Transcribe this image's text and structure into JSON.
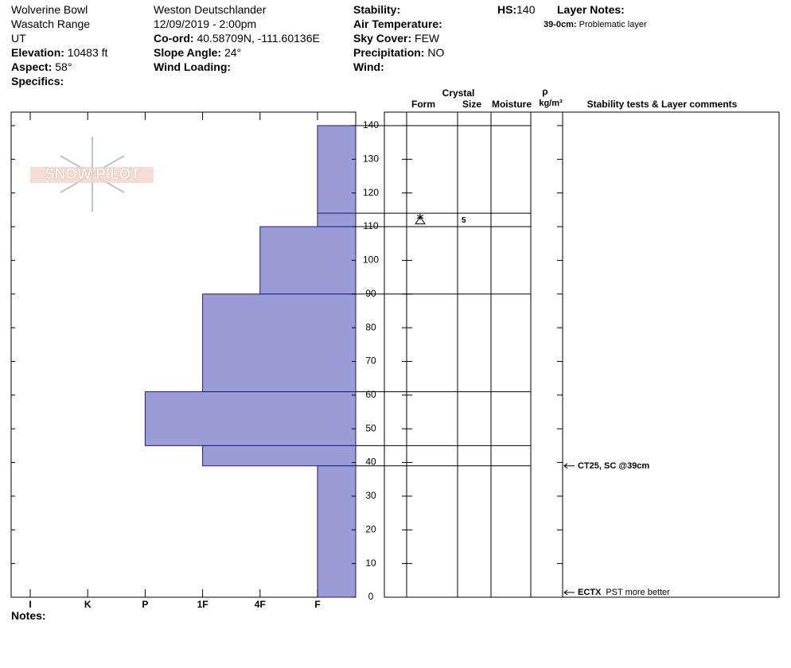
{
  "header": {
    "location": "Wolverine Bowl",
    "range": "Wasatch Range",
    "state": "UT",
    "elevation_label": "Elevation:",
    "elevation": "10483 ft",
    "aspect_label": "Aspect:",
    "aspect": "58°",
    "specifics_label": "Specifics:",
    "observer": "Weston Deutschlander",
    "datetime": "12/09/2019 - 2:00pm",
    "coord_label": "Co-ord:",
    "coord": "40.58709N, -111.60136E",
    "slope_label": "Slope Angle:",
    "slope": "24°",
    "wind_loading_label": "Wind Loading:",
    "stability_label": "Stability:",
    "air_temp_label": "Air Temperature:",
    "sky_label": "Sky Cover:",
    "sky": "FEW",
    "precip_label": "Precipitation:",
    "precip": "NO",
    "wind_label": "Wind:",
    "hs_label": "HS:",
    "hs": 140,
    "layer_notes_label": "Layer Notes:",
    "layer_note_range": "39-0cm:",
    "layer_note": "Problematic layer",
    "notes_label": "Notes:",
    "logo": "SNOW PILOT"
  },
  "chart_data": {
    "type": "profile",
    "categories": [
      "I",
      "K",
      "P",
      "1F",
      "4F",
      "F"
    ],
    "ylim": [
      0,
      144
    ],
    "yticks": [
      0,
      10,
      20,
      30,
      40,
      50,
      60,
      70,
      80,
      90,
      100,
      110,
      120,
      130,
      140
    ],
    "color": "#9b9bd6",
    "edge_color": "#1a1a8c",
    "columns": {
      "crystal": "Crystal",
      "form": "Form",
      "size": "Size",
      "moisture": "Moisture",
      "rho": "ρ",
      "density": "kg/m³",
      "comments": "Stability tests & Layer comments"
    },
    "layers": [
      {
        "top": 140,
        "bottom": 114,
        "hardness": "F"
      },
      {
        "top": 114,
        "bottom": 110,
        "hardness": "F",
        "size": 5
      },
      {
        "top": 110,
        "bottom": 90,
        "hardness": "4F"
      },
      {
        "top": 90,
        "bottom": 61,
        "hardness": "1F"
      },
      {
        "top": 61,
        "bottom": 45,
        "hardness": "P"
      },
      {
        "top": 45,
        "bottom": 39,
        "hardness": "1F"
      },
      {
        "top": 39,
        "bottom": 0,
        "hardness": "F"
      }
    ],
    "tests": [
      {
        "height": 39,
        "code": "CT25, SC @39cm"
      },
      {
        "height": 0,
        "code": "ECTX",
        "comment": "PST more better"
      }
    ]
  }
}
